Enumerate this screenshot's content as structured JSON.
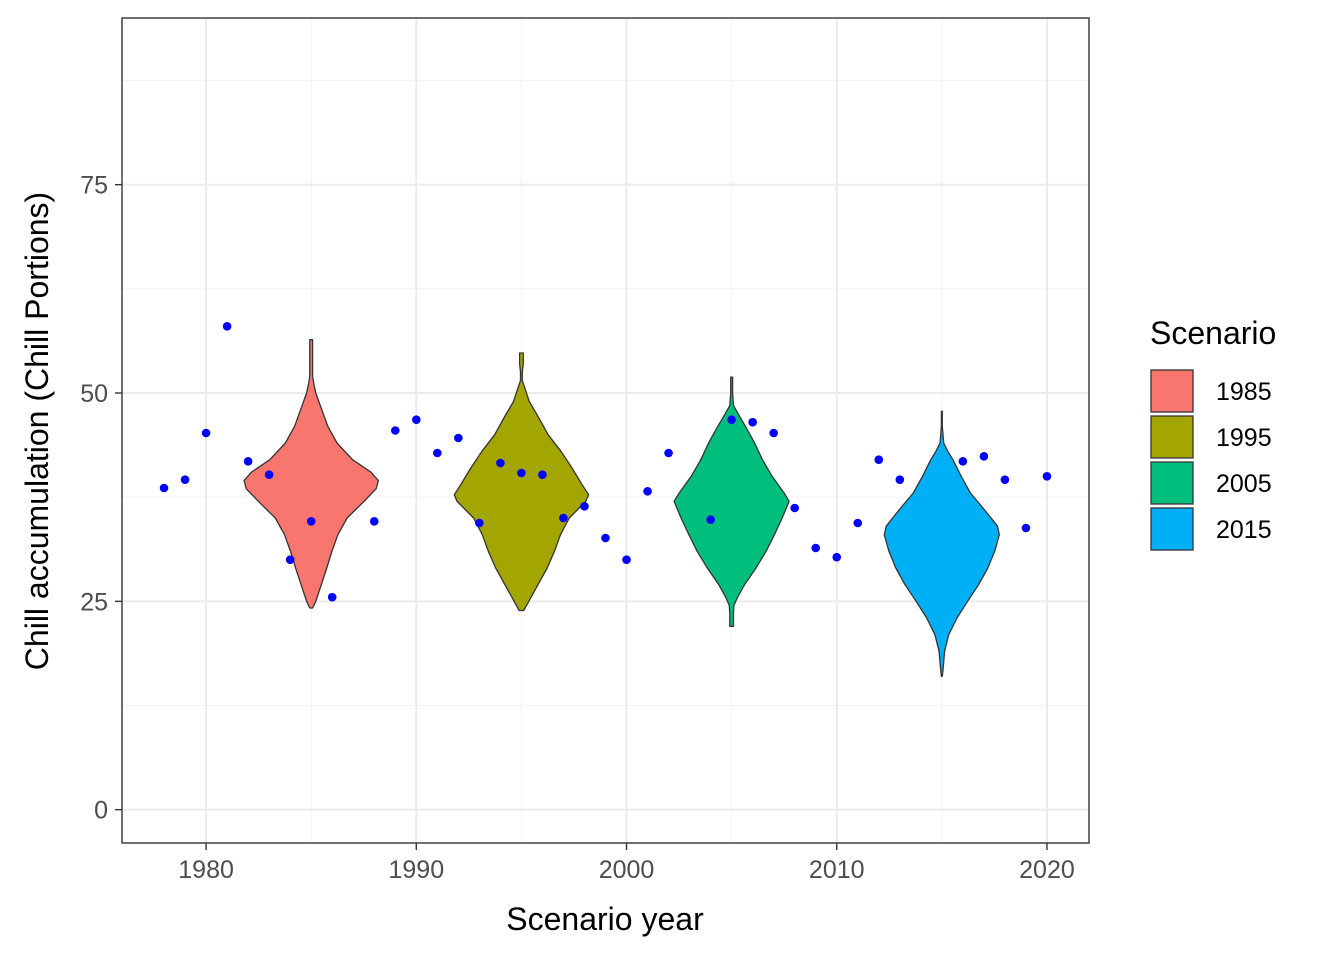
{
  "chart_data": {
    "type": "violin",
    "xlabel": "Scenario year",
    "ylabel": "Chill accumulation (Chill Portions)",
    "xlim": [
      1976,
      2022
    ],
    "ylim": [
      -4,
      95
    ],
    "x_ticks": [
      "1980",
      "1990",
      "2000",
      "2010",
      "2020"
    ],
    "y_ticks": [
      "0",
      "25",
      "50",
      "75"
    ],
    "grid": true,
    "legend": {
      "title": "Scenario",
      "position": "right",
      "entries": [
        {
          "label": "1985",
          "color": "#F8766D"
        },
        {
          "label": "1995",
          "color": "#A3A500"
        },
        {
          "label": "2005",
          "color": "#00BF7D"
        },
        {
          "label": "2015",
          "color": "#00B0F6"
        }
      ]
    },
    "violins": [
      {
        "scenario": "1985",
        "x": 1985,
        "color": "#F8766D",
        "profile": [
          [
            24.2,
            0.3
          ],
          [
            25,
            1.0
          ],
          [
            27,
            2.2
          ],
          [
            29,
            3.4
          ],
          [
            31,
            4.5
          ],
          [
            33,
            5.8
          ],
          [
            35,
            7.8
          ],
          [
            37,
            11.5
          ],
          [
            38.5,
            14.1
          ],
          [
            39.5,
            14.6
          ],
          [
            40.5,
            13.0
          ],
          [
            42,
            9.0
          ],
          [
            44,
            5.6
          ],
          [
            46,
            3.6
          ],
          [
            48,
            2.3
          ],
          [
            50,
            1.0
          ],
          [
            51,
            0.6
          ],
          [
            52,
            0.3
          ],
          [
            54,
            0.3
          ],
          [
            56.4,
            0.3
          ]
        ]
      },
      {
        "scenario": "1995",
        "x": 1995,
        "color": "#A3A500",
        "profile": [
          [
            23.9,
            0.5
          ],
          [
            25,
            1.6
          ],
          [
            27,
            3.6
          ],
          [
            29,
            5.6
          ],
          [
            31,
            7.2
          ],
          [
            33,
            8.5
          ],
          [
            35,
            10.4
          ],
          [
            37,
            14.0
          ],
          [
            37.8,
            14.6
          ],
          [
            39,
            13.2
          ],
          [
            41,
            11.0
          ],
          [
            43,
            8.6
          ],
          [
            45,
            5.8
          ],
          [
            47,
            3.8
          ],
          [
            49,
            1.7
          ],
          [
            50.5,
            0.8
          ],
          [
            51.5,
            0.2
          ],
          [
            52.5,
            0.2
          ],
          [
            53.5,
            0.4
          ],
          [
            54.8,
            0.4
          ]
        ]
      },
      {
        "scenario": "2005",
        "x": 2005,
        "color": "#00BF7D",
        "profile": [
          [
            22,
            0.4
          ],
          [
            23.5,
            0.4
          ],
          [
            24.5,
            0.5
          ],
          [
            25.5,
            1.3
          ],
          [
            27,
            2.8
          ],
          [
            29,
            5.3
          ],
          [
            31,
            7.5
          ],
          [
            33,
            9.3
          ],
          [
            35,
            11.0
          ],
          [
            37,
            12.5
          ],
          [
            38,
            11.4
          ],
          [
            40,
            8.8
          ],
          [
            42,
            6.7
          ],
          [
            44,
            5.0
          ],
          [
            46,
            3.0
          ],
          [
            47.5,
            1.4
          ],
          [
            48.5,
            0.4
          ],
          [
            50,
            0.2
          ],
          [
            51.9,
            0.2
          ]
        ]
      },
      {
        "scenario": "2015",
        "x": 2015,
        "color": "#00B0F6",
        "profile": [
          [
            16,
            0.1
          ],
          [
            17,
            0.3
          ],
          [
            19,
            0.6
          ],
          [
            21,
            1.5
          ],
          [
            23,
            3.3
          ],
          [
            25,
            5.6
          ],
          [
            27,
            8.0
          ],
          [
            29,
            10.0
          ],
          [
            31,
            11.5
          ],
          [
            33,
            12.5
          ],
          [
            34,
            12.1
          ],
          [
            35,
            10.7
          ],
          [
            36.5,
            8.5
          ],
          [
            38,
            6.2
          ],
          [
            40,
            4.2
          ],
          [
            42,
            2.4
          ],
          [
            43,
            1.3
          ],
          [
            44,
            0.4
          ],
          [
            46,
            0.1
          ],
          [
            47.8,
            0.1
          ]
        ]
      }
    ],
    "points": [
      [
        1978,
        38.6
      ],
      [
        1979,
        39.6
      ],
      [
        1980,
        45.2
      ],
      [
        1981,
        58
      ],
      [
        1982,
        41.8
      ],
      [
        1983,
        40.2
      ],
      [
        1984,
        30
      ],
      [
        1985,
        34.6
      ],
      [
        1986,
        25.5
      ],
      [
        1988,
        34.6
      ],
      [
        1989,
        45.5
      ],
      [
        1990,
        46.8
      ],
      [
        1991,
        42.8
      ],
      [
        1992,
        44.6
      ],
      [
        1993,
        34.4
      ],
      [
        1994,
        41.6
      ],
      [
        1995,
        40.4
      ],
      [
        1996,
        40.2
      ],
      [
        1997,
        35
      ],
      [
        1998,
        36.4
      ],
      [
        1999,
        32.6
      ],
      [
        2000,
        30
      ],
      [
        2001,
        38.2
      ],
      [
        2002,
        42.8
      ],
      [
        2004,
        34.8
      ],
      [
        2005,
        46.8
      ],
      [
        2006,
        46.5
      ],
      [
        2007,
        45.2
      ],
      [
        2008,
        36.2
      ],
      [
        2009,
        31.4
      ],
      [
        2010,
        30.3
      ],
      [
        2011,
        34.4
      ],
      [
        2012,
        42
      ],
      [
        2013,
        39.6
      ],
      [
        2016,
        41.8
      ],
      [
        2017,
        42.4
      ],
      [
        2018,
        39.6
      ],
      [
        2019,
        33.8
      ],
      [
        2020,
        40
      ]
    ],
    "point_color": "#0000FF"
  }
}
